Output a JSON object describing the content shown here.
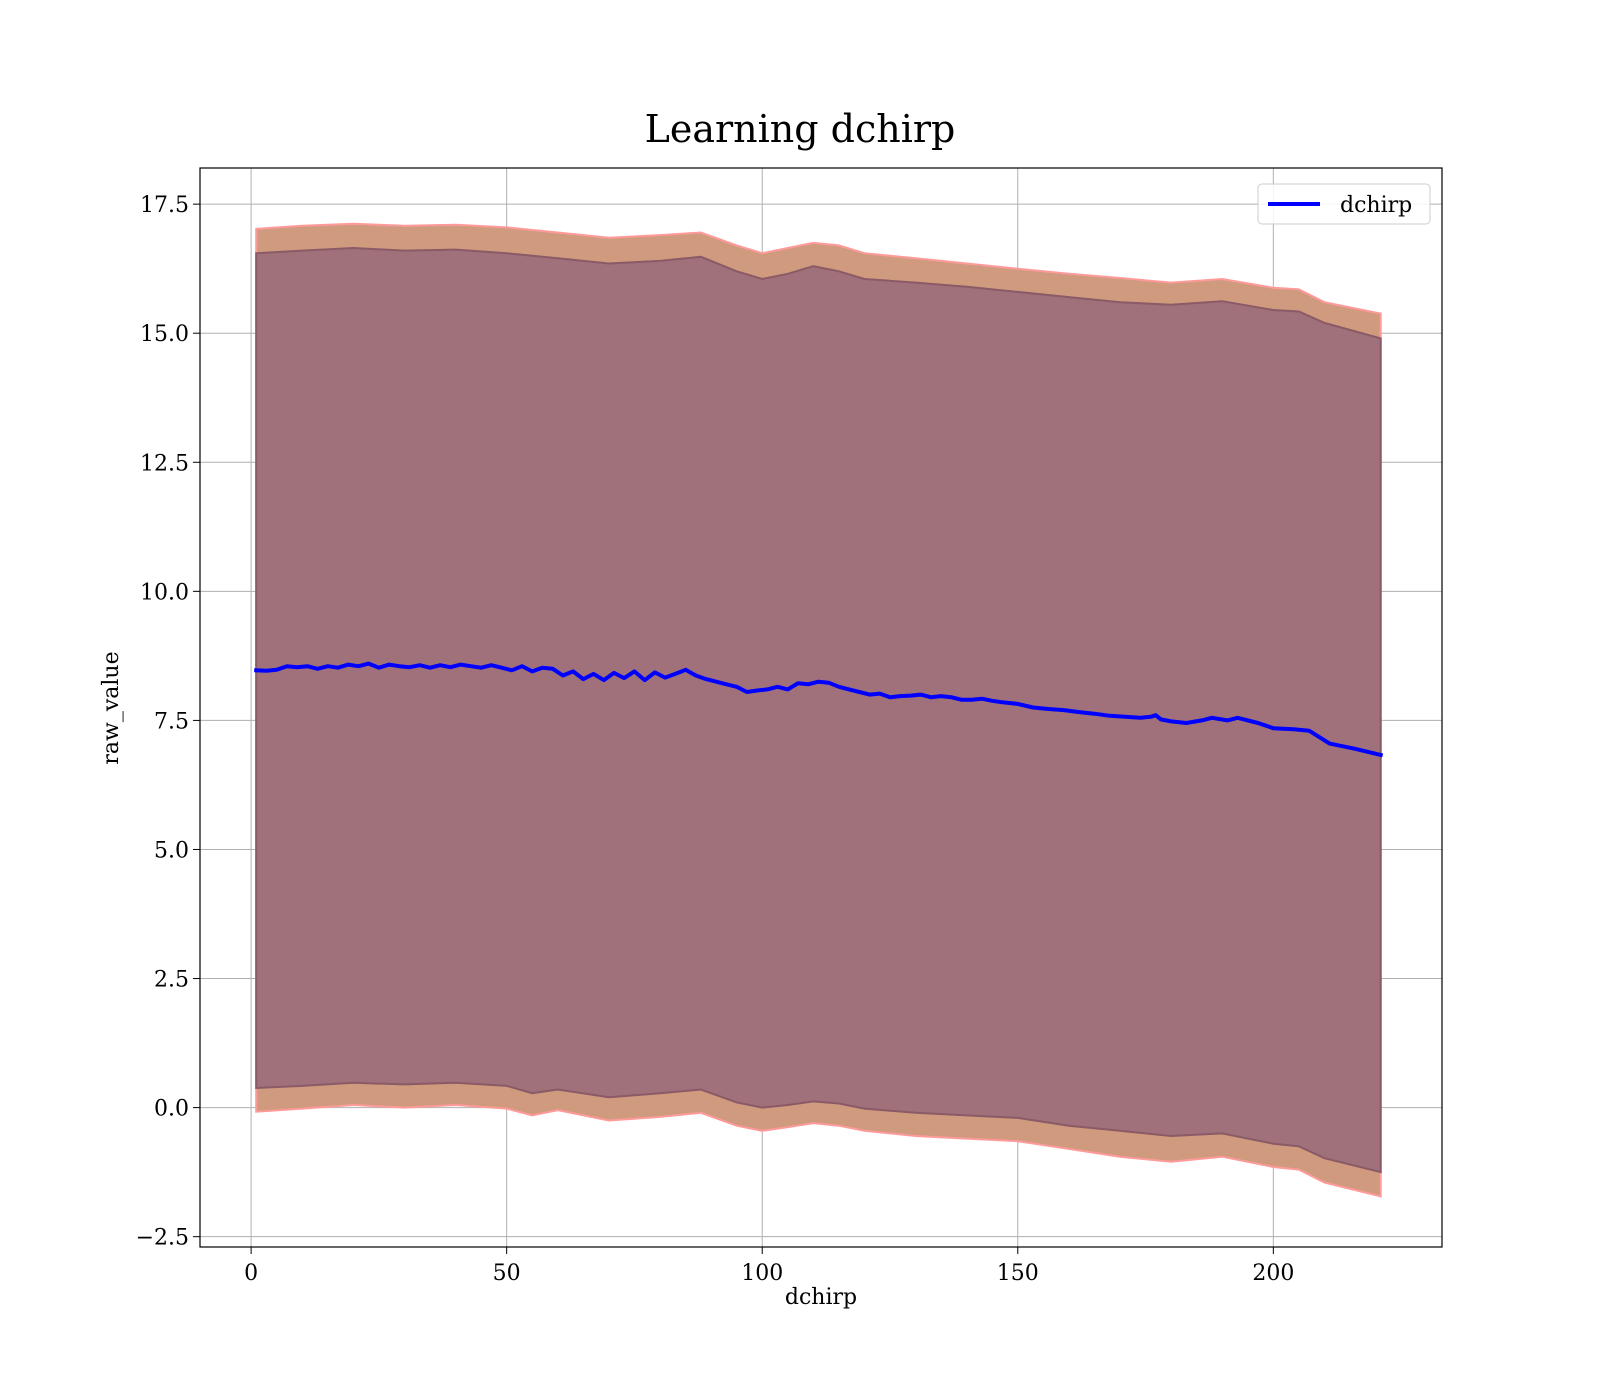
{
  "chart_data": {
    "type": "line",
    "title": "Learning dchirp",
    "xlabel": "dchirp",
    "ylabel": "raw_value",
    "xlim": [
      -10,
      233
    ],
    "ylim": [
      -2.7,
      18.2
    ],
    "xticks": [
      0,
      50,
      100,
      150,
      200
    ],
    "xtick_labels": [
      "0",
      "50",
      "100",
      "150",
      "200"
    ],
    "yticks": [
      -2.5,
      0.0,
      2.5,
      5.0,
      7.5,
      10.0,
      12.5,
      15.0,
      17.5
    ],
    "ytick_labels": [
      "−2.5",
      "0.0",
      "2.5",
      "5.0",
      "7.5",
      "10.0",
      "12.5",
      "15.0",
      "17.5"
    ],
    "grid": true,
    "legend_position": "top-right",
    "series": [
      {
        "name": "dchirp",
        "color": "#0000ff",
        "x": [
          1,
          3,
          5,
          7,
          9,
          11,
          13,
          15,
          17,
          19,
          21,
          23,
          25,
          27,
          29,
          31,
          33,
          35,
          37,
          39,
          41,
          43,
          45,
          47,
          49,
          51,
          53,
          55,
          57,
          59,
          61,
          63,
          65,
          67,
          69,
          71,
          73,
          75,
          77,
          79,
          81,
          83,
          85,
          87,
          89,
          91,
          93,
          95,
          97,
          99,
          101,
          103,
          105,
          107,
          109,
          111,
          113,
          115,
          117,
          119,
          121,
          123,
          125,
          127,
          129,
          131,
          133,
          135,
          137,
          139,
          141,
          143,
          145,
          147,
          150,
          153,
          156,
          159,
          162,
          165,
          168,
          171,
          174,
          176,
          177,
          178,
          180,
          183,
          186,
          188,
          191,
          193,
          197,
          200,
          204,
          207,
          211,
          216,
          221
        ],
        "y": [
          8.47,
          8.46,
          8.48,
          8.55,
          8.53,
          8.55,
          8.5,
          8.55,
          8.52,
          8.58,
          8.55,
          8.6,
          8.52,
          8.58,
          8.55,
          8.53,
          8.57,
          8.52,
          8.57,
          8.53,
          8.58,
          8.55,
          8.52,
          8.57,
          8.52,
          8.47,
          8.55,
          8.45,
          8.52,
          8.5,
          8.37,
          8.45,
          8.3,
          8.4,
          8.28,
          8.42,
          8.32,
          8.45,
          8.28,
          8.43,
          8.33,
          8.4,
          8.48,
          8.37,
          8.3,
          8.25,
          8.2,
          8.15,
          8.05,
          8.08,
          8.1,
          8.15,
          8.1,
          8.22,
          8.2,
          8.25,
          8.23,
          8.15,
          8.1,
          8.05,
          8.0,
          8.02,
          7.95,
          7.97,
          7.98,
          8.0,
          7.95,
          7.97,
          7.95,
          7.9,
          7.9,
          7.92,
          7.88,
          7.85,
          7.82,
          7.75,
          7.72,
          7.7,
          7.66,
          7.63,
          7.59,
          7.57,
          7.55,
          7.57,
          7.6,
          7.52,
          7.48,
          7.45,
          7.5,
          7.55,
          7.5,
          7.55,
          7.45,
          7.35,
          7.33,
          7.3,
          7.05,
          6.95,
          6.83
        ]
      }
    ],
    "bands": [
      {
        "fill": "#cf9a7e",
        "edge": "#ff9a9a",
        "x": [
          1,
          10,
          20,
          30,
          40,
          50,
          55,
          60,
          70,
          80,
          88,
          95,
          100,
          105,
          110,
          115,
          120,
          130,
          140,
          150,
          160,
          170,
          180,
          190,
          200,
          205,
          210,
          221
        ],
        "upper": [
          17.02,
          17.08,
          17.12,
          17.08,
          17.1,
          17.05,
          17.0,
          16.95,
          16.85,
          16.9,
          16.95,
          16.7,
          16.55,
          16.65,
          16.75,
          16.7,
          16.55,
          16.45,
          16.35,
          16.25,
          16.15,
          16.07,
          15.98,
          16.05,
          15.88,
          15.85,
          15.6,
          15.38
        ],
        "lower": [
          -0.08,
          -0.02,
          0.05,
          0.0,
          0.05,
          -0.02,
          -0.15,
          -0.05,
          -0.25,
          -0.18,
          -0.1,
          -0.35,
          -0.45,
          -0.38,
          -0.3,
          -0.35,
          -0.45,
          -0.55,
          -0.6,
          -0.65,
          -0.8,
          -0.95,
          -1.05,
          -0.95,
          -1.15,
          -1.2,
          -1.45,
          -1.72
        ]
      },
      {
        "fill": "#a0717a",
        "edge": "#8a5a66",
        "x": [
          1,
          10,
          20,
          30,
          40,
          50,
          55,
          60,
          70,
          80,
          88,
          95,
          100,
          105,
          110,
          115,
          120,
          130,
          140,
          150,
          160,
          170,
          180,
          190,
          200,
          205,
          210,
          221
        ],
        "upper": [
          16.55,
          16.6,
          16.65,
          16.6,
          16.62,
          16.55,
          16.5,
          16.45,
          16.35,
          16.4,
          16.48,
          16.2,
          16.05,
          16.15,
          16.3,
          16.2,
          16.05,
          15.98,
          15.9,
          15.8,
          15.7,
          15.6,
          15.55,
          15.62,
          15.45,
          15.42,
          15.2,
          14.9
        ],
        "lower": [
          0.38,
          0.42,
          0.48,
          0.45,
          0.48,
          0.42,
          0.28,
          0.35,
          0.2,
          0.28,
          0.35,
          0.1,
          0.0,
          0.05,
          0.12,
          0.08,
          -0.02,
          -0.1,
          -0.15,
          -0.2,
          -0.35,
          -0.45,
          -0.55,
          -0.5,
          -0.7,
          -0.75,
          -0.98,
          -1.25
        ]
      }
    ]
  }
}
